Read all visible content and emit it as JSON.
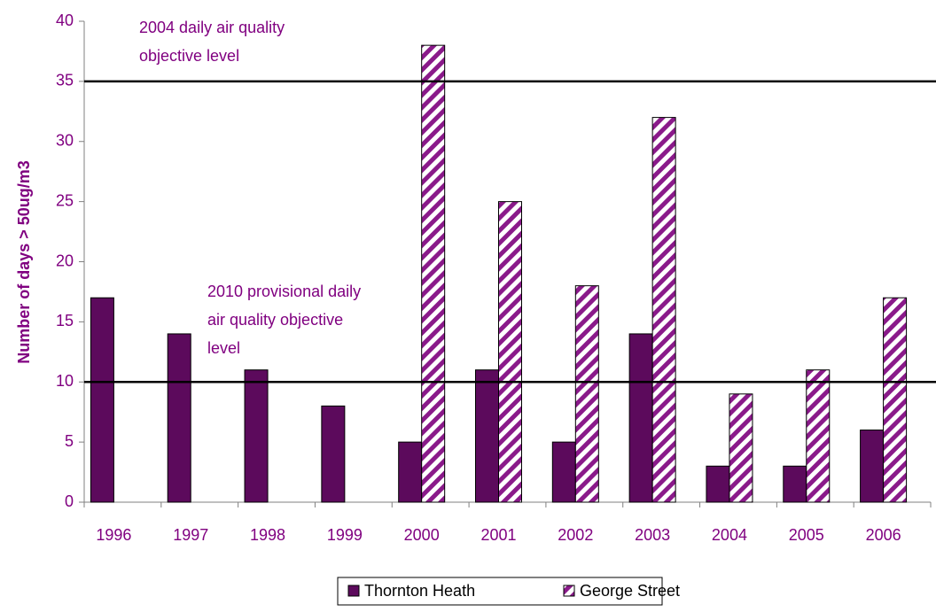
{
  "chart_data": {
    "type": "bar",
    "y_label": "Number of days > 50ug/m3",
    "categories": [
      "1996",
      "1997",
      "1998",
      "1999",
      "2000",
      "2001",
      "2002",
      "2003",
      "2004",
      "2005",
      "2006"
    ],
    "series": [
      {
        "name": "Thornton Heath",
        "color": "#5c0a5c",
        "values": [
          17,
          14,
          11,
          8,
          5,
          11,
          5,
          14,
          3,
          3,
          6
        ]
      },
      {
        "name": "George Street",
        "color": "#8a1a8a",
        "pattern": "hatch",
        "values": [
          null,
          null,
          null,
          null,
          38,
          25,
          18,
          32,
          9,
          11,
          17
        ]
      }
    ],
    "reference_lines": [
      {
        "value": 35,
        "label": [
          "2004 daily air quality",
          "objective level"
        ]
      },
      {
        "value": 10,
        "label": [
          "2010 provisional daily",
          "air quality objective",
          "level"
        ]
      }
    ],
    "ylim": [
      0,
      40
    ],
    "yticks": [
      0,
      5,
      10,
      15,
      20,
      25,
      30,
      35,
      40
    ],
    "legend": "bottom"
  }
}
